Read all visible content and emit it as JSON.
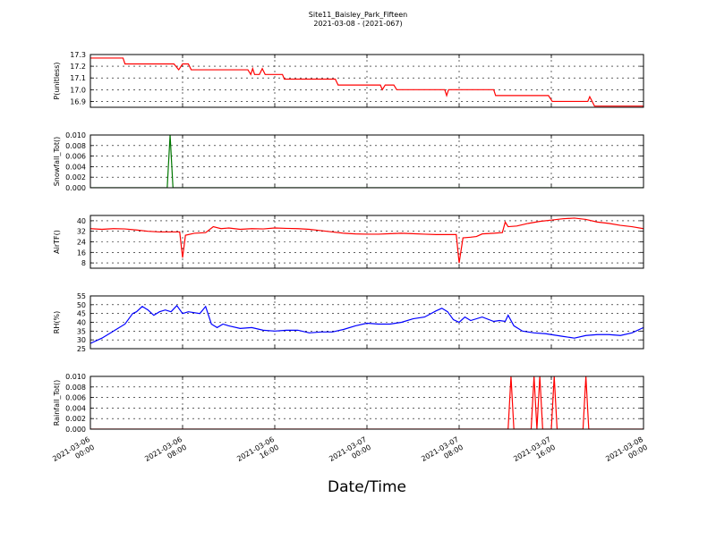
{
  "figure": {
    "title_line1": "Site11_Baisley_Park_Fifteen",
    "title_line2": "2021-03-08 - (2021-067)",
    "xlabel": "Date/Time"
  },
  "chart_data": {
    "type": "line",
    "x_axis": {
      "range": [
        "2021-03-06 00:00",
        "2021-03-08 00:00"
      ],
      "ticks": [
        {
          "value": "2021-03-06 00:00",
          "line1": "2021-03-06",
          "line2": "00:00"
        },
        {
          "value": "2021-03-06 08:00",
          "line1": "2021-03-06",
          "line2": "08:00"
        },
        {
          "value": "2021-03-06 16:00",
          "line1": "2021-03-06",
          "line2": "16:00"
        },
        {
          "value": "2021-03-07 00:00",
          "line1": "2021-03-07",
          "line2": "00:00"
        },
        {
          "value": "2021-03-07 08:00",
          "line1": "2021-03-07",
          "line2": "08:00"
        },
        {
          "value": "2021-03-07 16:00",
          "line1": "2021-03-07",
          "line2": "16:00"
        },
        {
          "value": "2021-03-08 00:00",
          "line1": "2021-03-08",
          "line2": "00:00"
        }
      ]
    },
    "panels": [
      {
        "id": "pressure",
        "ylabel": "P(unitless)",
        "ylim": [
          16.85,
          17.3
        ],
        "yticks": [
          16.9,
          17.0,
          17.1,
          17.2,
          17.3
        ],
        "ytick_labels": [
          "16.9",
          "17.0",
          "17.1",
          "17.2",
          "17.3"
        ],
        "color": "#ff0000",
        "grid": true,
        "points": [
          [
            "2021-03-06 00:00",
            17.27
          ],
          [
            "2021-03-06 02:50",
            17.27
          ],
          [
            "2021-03-06 03:00",
            17.22
          ],
          [
            "2021-03-06 07:15",
            17.22
          ],
          [
            "2021-03-06 07:40",
            17.17
          ],
          [
            "2021-03-06 08:00",
            17.22
          ],
          [
            "2021-03-06 08:30",
            17.22
          ],
          [
            "2021-03-06 08:45",
            17.17
          ],
          [
            "2021-03-06 13:40",
            17.17
          ],
          [
            "2021-03-06 13:55",
            17.13
          ],
          [
            "2021-03-06 14:05",
            17.18
          ],
          [
            "2021-03-06 14:15",
            17.13
          ],
          [
            "2021-03-06 14:40",
            17.13
          ],
          [
            "2021-03-06 14:55",
            17.18
          ],
          [
            "2021-03-06 15:10",
            17.13
          ],
          [
            "2021-03-06 16:40",
            17.13
          ],
          [
            "2021-03-06 16:50",
            17.09
          ],
          [
            "2021-03-06 21:15",
            17.09
          ],
          [
            "2021-03-06 21:30",
            17.04
          ],
          [
            "2021-03-07 01:10",
            17.04
          ],
          [
            "2021-03-07 01:20",
            17.0
          ],
          [
            "2021-03-07 01:35",
            17.04
          ],
          [
            "2021-03-07 02:20",
            17.04
          ],
          [
            "2021-03-07 02:35",
            17.0
          ],
          [
            "2021-03-07 06:45",
            17.0
          ],
          [
            "2021-03-07 06:55",
            16.95
          ],
          [
            "2021-03-07 07:05",
            17.0
          ],
          [
            "2021-03-07 11:00",
            17.0
          ],
          [
            "2021-03-07 11:10",
            16.95
          ],
          [
            "2021-03-07 15:45",
            16.95
          ],
          [
            "2021-03-07 16:05",
            16.9
          ],
          [
            "2021-03-07 19:10",
            16.9
          ],
          [
            "2021-03-07 19:20",
            16.94
          ],
          [
            "2021-03-07 19:45",
            16.86
          ],
          [
            "2021-03-08 00:00",
            16.86
          ]
        ]
      },
      {
        "id": "snowfall",
        "ylabel": "Snowfall_Tot()",
        "ylim": [
          0.0,
          0.01
        ],
        "yticks": [
          0.0,
          0.002,
          0.004,
          0.006,
          0.008,
          0.01
        ],
        "ytick_labels": [
          "0.000",
          "0.002",
          "0.004",
          "0.006",
          "0.008",
          "0.010"
        ],
        "color": "#007700",
        "grid": true,
        "points": [
          [
            "2021-03-06 00:00",
            0.0
          ],
          [
            "2021-03-06 06:40",
            0.0
          ],
          [
            "2021-03-06 06:55",
            0.01
          ],
          [
            "2021-03-06 07:10",
            0.0
          ],
          [
            "2021-03-08 00:00",
            0.0
          ]
        ]
      },
      {
        "id": "airtemp",
        "ylabel": "AirTF()",
        "ylim": [
          4,
          44
        ],
        "yticks": [
          8,
          16,
          24,
          32,
          40
        ],
        "ytick_labels": [
          "8",
          "16",
          "24",
          "32",
          "40"
        ],
        "color": "#ff0000",
        "grid": true,
        "points": [
          [
            "2021-03-06 00:00",
            34
          ],
          [
            "2021-03-06 01:00",
            33.5
          ],
          [
            "2021-03-06 02:00",
            34
          ],
          [
            "2021-03-06 03:00",
            33.8
          ],
          [
            "2021-03-06 04:00",
            33
          ],
          [
            "2021-03-06 05:00",
            32
          ],
          [
            "2021-03-06 06:00",
            31.5
          ],
          [
            "2021-03-06 07:00",
            31.5
          ],
          [
            "2021-03-06 07:45",
            31.5
          ],
          [
            "2021-03-06 08:00",
            12
          ],
          [
            "2021-03-06 08:15",
            29
          ],
          [
            "2021-03-06 09:00",
            30.5
          ],
          [
            "2021-03-06 10:00",
            31
          ],
          [
            "2021-03-06 10:40",
            35.5
          ],
          [
            "2021-03-06 11:20",
            34
          ],
          [
            "2021-03-06 12:00",
            34.5
          ],
          [
            "2021-03-06 13:00",
            33.5
          ],
          [
            "2021-03-06 14:00",
            34
          ],
          [
            "2021-03-06 15:00",
            33.8
          ],
          [
            "2021-03-06 16:00",
            34.5
          ],
          [
            "2021-03-06 17:00",
            34.2
          ],
          [
            "2021-03-06 18:00",
            34
          ],
          [
            "2021-03-06 19:00",
            33.5
          ],
          [
            "2021-03-06 20:00",
            32.5
          ],
          [
            "2021-03-06 21:00",
            31.5
          ],
          [
            "2021-03-06 22:00",
            30.5
          ],
          [
            "2021-03-06 23:00",
            30
          ],
          [
            "2021-03-07 00:00",
            29.8
          ],
          [
            "2021-03-07 01:00",
            29.8
          ],
          [
            "2021-03-07 02:00",
            30.2
          ],
          [
            "2021-03-07 03:00",
            30.5
          ],
          [
            "2021-03-07 04:00",
            30.2
          ],
          [
            "2021-03-07 05:00",
            29.8
          ],
          [
            "2021-03-07 06:00",
            29.5
          ],
          [
            "2021-03-07 07:00",
            29.5
          ],
          [
            "2021-03-07 07:45",
            29.5
          ],
          [
            "2021-03-07 08:00",
            8
          ],
          [
            "2021-03-07 08:20",
            27
          ],
          [
            "2021-03-07 09:00",
            27.5
          ],
          [
            "2021-03-07 09:30",
            28
          ],
          [
            "2021-03-07 10:00",
            30
          ],
          [
            "2021-03-07 11:00",
            30.5
          ],
          [
            "2021-03-07 11:45",
            31
          ],
          [
            "2021-03-07 12:00",
            39
          ],
          [
            "2021-03-07 12:15",
            35.5
          ],
          [
            "2021-03-07 13:00",
            36
          ],
          [
            "2021-03-07 14:00",
            38
          ],
          [
            "2021-03-07 15:00",
            39.5
          ],
          [
            "2021-03-07 16:00",
            40.5
          ],
          [
            "2021-03-07 17:00",
            41.5
          ],
          [
            "2021-03-07 18:00",
            42
          ],
          [
            "2021-03-07 19:00",
            41
          ],
          [
            "2021-03-07 20:00",
            39
          ],
          [
            "2021-03-07 21:00",
            38
          ],
          [
            "2021-03-07 22:00",
            36.5
          ],
          [
            "2021-03-07 23:00",
            35.5
          ],
          [
            "2021-03-08 00:00",
            34
          ]
        ]
      },
      {
        "id": "rh",
        "ylabel": "RH(%)",
        "ylim": [
          25,
          55
        ],
        "yticks": [
          25,
          30,
          35,
          40,
          45,
          50,
          55
        ],
        "ytick_labels": [
          "25",
          "30",
          "35",
          "40",
          "45",
          "50",
          "55"
        ],
        "color": "#0000ff",
        "grid": true,
        "points": [
          [
            "2021-03-06 00:00",
            28
          ],
          [
            "2021-03-06 01:00",
            31
          ],
          [
            "2021-03-06 02:00",
            35
          ],
          [
            "2021-03-06 03:00",
            39
          ],
          [
            "2021-03-06 03:40",
            45
          ],
          [
            "2021-03-06 04:00",
            46
          ],
          [
            "2021-03-06 04:30",
            49
          ],
          [
            "2021-03-06 05:00",
            47
          ],
          [
            "2021-03-06 05:30",
            44
          ],
          [
            "2021-03-06 06:00",
            46
          ],
          [
            "2021-03-06 06:30",
            47
          ],
          [
            "2021-03-06 07:00",
            46
          ],
          [
            "2021-03-06 07:30",
            49.5
          ],
          [
            "2021-03-06 08:00",
            45
          ],
          [
            "2021-03-06 08:30",
            46
          ],
          [
            "2021-03-06 09:00",
            45.5
          ],
          [
            "2021-03-06 09:30",
            45
          ],
          [
            "2021-03-06 10:00",
            49
          ],
          [
            "2021-03-06 10:30",
            39
          ],
          [
            "2021-03-06 11:00",
            37
          ],
          [
            "2021-03-06 11:30",
            39
          ],
          [
            "2021-03-06 12:00",
            38
          ],
          [
            "2021-03-06 13:00",
            36.5
          ],
          [
            "2021-03-06 14:00",
            37
          ],
          [
            "2021-03-06 15:00",
            35.5
          ],
          [
            "2021-03-06 16:00",
            35
          ],
          [
            "2021-03-06 17:00",
            35.5
          ],
          [
            "2021-03-06 18:00",
            35.5
          ],
          [
            "2021-03-06 19:00",
            34
          ],
          [
            "2021-03-06 20:00",
            34.5
          ],
          [
            "2021-03-06 21:00",
            34.5
          ],
          [
            "2021-03-06 22:00",
            36
          ],
          [
            "2021-03-06 23:00",
            38
          ],
          [
            "2021-03-07 00:00",
            39.5
          ],
          [
            "2021-03-07 01:00",
            39
          ],
          [
            "2021-03-07 02:00",
            39
          ],
          [
            "2021-03-07 03:00",
            40
          ],
          [
            "2021-03-07 04:00",
            42
          ],
          [
            "2021-03-07 05:00",
            43
          ],
          [
            "2021-03-07 06:00",
            46.5
          ],
          [
            "2021-03-07 06:30",
            48
          ],
          [
            "2021-03-07 07:00",
            46
          ],
          [
            "2021-03-07 07:30",
            41.5
          ],
          [
            "2021-03-07 08:00",
            40
          ],
          [
            "2021-03-07 08:30",
            43
          ],
          [
            "2021-03-07 09:00",
            41
          ],
          [
            "2021-03-07 10:00",
            43
          ],
          [
            "2021-03-07 11:00",
            40.5
          ],
          [
            "2021-03-07 11:30",
            41
          ],
          [
            "2021-03-07 12:00",
            40.5
          ],
          [
            "2021-03-07 12:15",
            44
          ],
          [
            "2021-03-07 12:45",
            38
          ],
          [
            "2021-03-07 13:30",
            35
          ],
          [
            "2021-03-07 14:30",
            34
          ],
          [
            "2021-03-07 15:30",
            33.5
          ],
          [
            "2021-03-07 16:00",
            33
          ],
          [
            "2021-03-07 17:00",
            32
          ],
          [
            "2021-03-07 18:00",
            31
          ],
          [
            "2021-03-07 19:00",
            32.5
          ],
          [
            "2021-03-07 20:00",
            33
          ],
          [
            "2021-03-07 21:00",
            33
          ],
          [
            "2021-03-07 22:00",
            32.5
          ],
          [
            "2021-03-07 23:00",
            34
          ],
          [
            "2021-03-08 00:00",
            37
          ]
        ]
      },
      {
        "id": "rainfall",
        "ylabel": "Rainfall_Tot()",
        "ylim": [
          0.0,
          0.01
        ],
        "yticks": [
          0.0,
          0.002,
          0.004,
          0.006,
          0.008,
          0.01
        ],
        "ytick_labels": [
          "0.000",
          "0.002",
          "0.004",
          "0.006",
          "0.008",
          "0.010"
        ],
        "color": "#ff0000",
        "grid": true,
        "points": [
          [
            "2021-03-06 00:00",
            0.0
          ],
          [
            "2021-03-07 12:15",
            0.0
          ],
          [
            "2021-03-07 12:30",
            0.01
          ],
          [
            "2021-03-07 12:45",
            0.0
          ],
          [
            "2021-03-07 14:15",
            0.0
          ],
          [
            "2021-03-07 14:30",
            0.01
          ],
          [
            "2021-03-07 14:45",
            0.0
          ],
          [
            "2021-03-07 15:00",
            0.01
          ],
          [
            "2021-03-07 15:15",
            0.0
          ],
          [
            "2021-03-07 16:00",
            0.0
          ],
          [
            "2021-03-07 16:15",
            0.01
          ],
          [
            "2021-03-07 16:30",
            0.0
          ],
          [
            "2021-03-07 18:45",
            0.0
          ],
          [
            "2021-03-07 19:00",
            0.01
          ],
          [
            "2021-03-07 19:15",
            0.0
          ],
          [
            "2021-03-08 00:00",
            0.0
          ]
        ]
      }
    ]
  }
}
